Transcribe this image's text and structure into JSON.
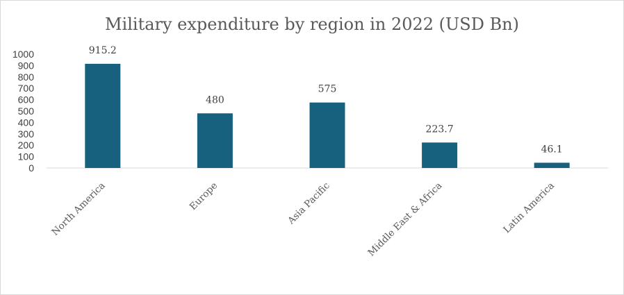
{
  "chart_data": {
    "type": "bar",
    "title": "Military expenditure by region in 2022 (USD Bn)",
    "categories": [
      "North America",
      "Europe",
      "Asia Pacific",
      "Middle East & Africa",
      "Latin America"
    ],
    "values": [
      915.2,
      480,
      575,
      223.7,
      46.1
    ],
    "value_labels": [
      "915.2",
      "480",
      "575",
      "223.7",
      "46.1"
    ],
    "yticks": [
      0,
      100,
      200,
      300,
      400,
      500,
      600,
      700,
      800,
      900,
      1000
    ],
    "ylim": [
      0,
      1000
    ],
    "xlabel": "",
    "ylabel": "",
    "grid": false,
    "legend": "none",
    "bar_color": "#17607e",
    "axis_color": "#d9d9d9"
  }
}
